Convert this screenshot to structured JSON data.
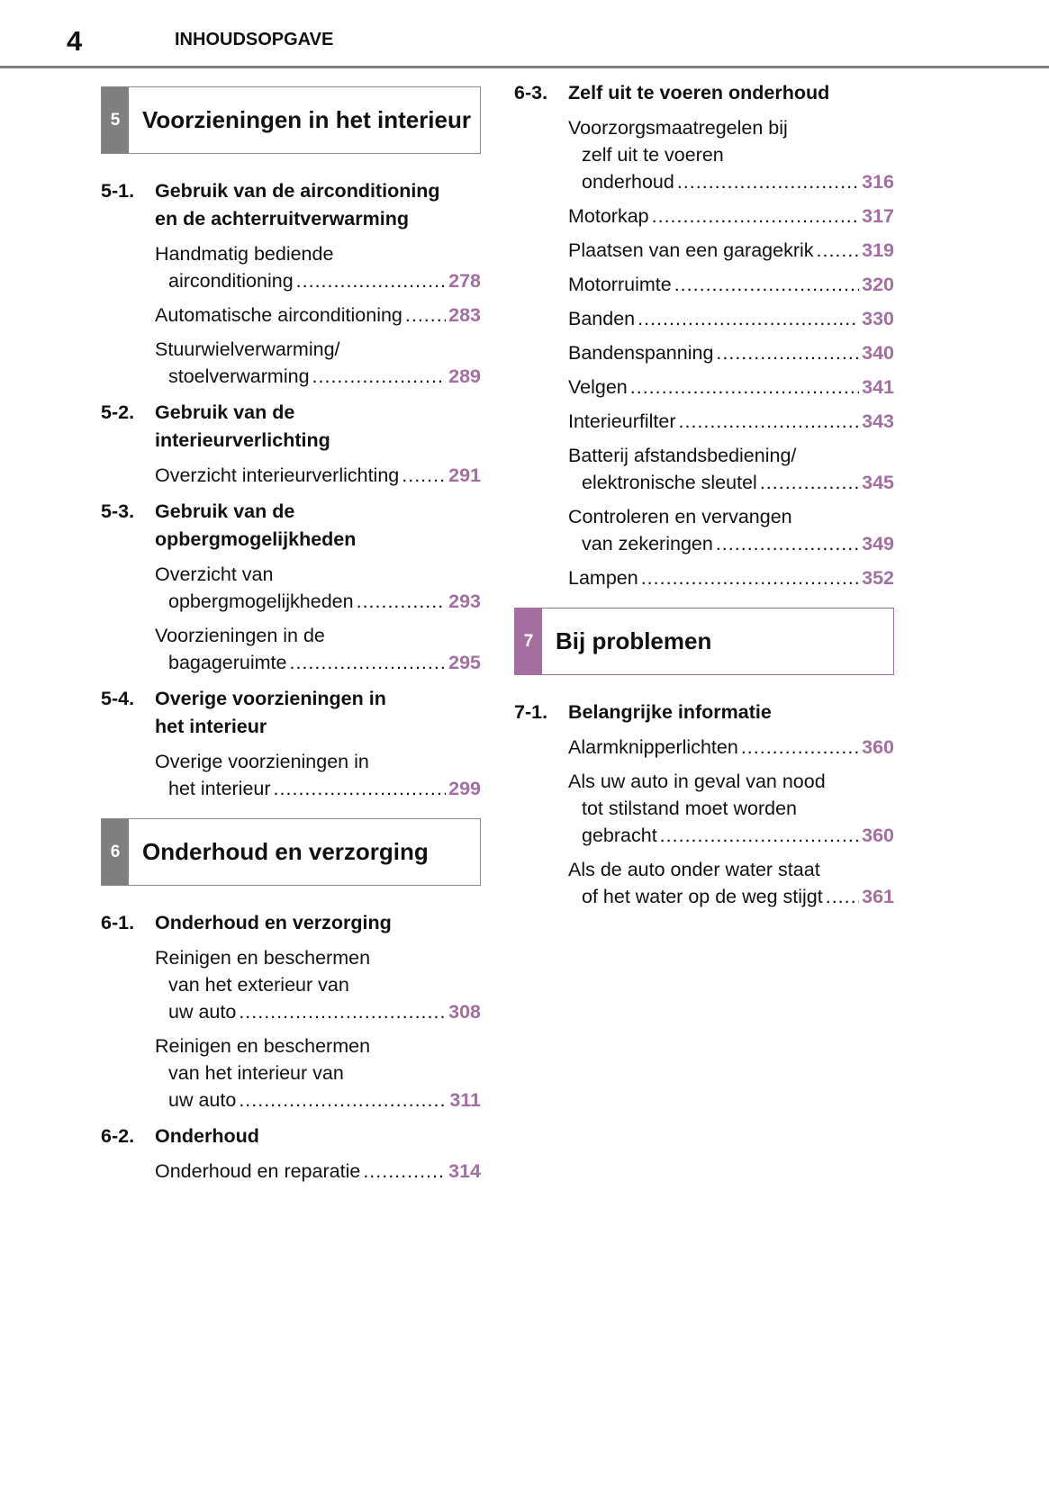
{
  "header": {
    "page_number": "4",
    "title": "INHOUDSOPGAVE"
  },
  "colors": {
    "accent": "#a46fa0",
    "section_tab_gray": "#7f7f7f"
  },
  "columns": [
    [
      {
        "type": "section",
        "num": "5",
        "title": "Voorzieningen in het interieur",
        "color": "gray"
      },
      {
        "type": "heading",
        "num": "5-1.",
        "lines": [
          "Gebruik van de airconditioning",
          "en de achterruitverwarming"
        ]
      },
      {
        "type": "entry",
        "lines": [
          "Handmatig bediende",
          "airconditioning"
        ],
        "page": "278"
      },
      {
        "type": "entry",
        "lines": [
          "Automatische airconditioning"
        ],
        "page": "283"
      },
      {
        "type": "entry",
        "lines": [
          "Stuurwielverwarming/",
          "stoelverwarming"
        ],
        "page": "289"
      },
      {
        "type": "heading",
        "num": "5-2.",
        "lines": [
          "Gebruik van de",
          "interieurverlichting"
        ]
      },
      {
        "type": "entry",
        "lines": [
          "Overzicht interieurverlichting"
        ],
        "page": "291"
      },
      {
        "type": "heading",
        "num": "5-3.",
        "lines": [
          "Gebruik van de",
          "opbergmogelijkheden"
        ]
      },
      {
        "type": "entry",
        "lines": [
          "Overzicht van",
          "opbergmogelijkheden"
        ],
        "page": "293"
      },
      {
        "type": "entry",
        "lines": [
          "Voorzieningen in de",
          "bagageruimte"
        ],
        "page": "295"
      },
      {
        "type": "heading",
        "num": "5-4.",
        "lines": [
          "Overige voorzieningen in",
          "het interieur"
        ]
      },
      {
        "type": "entry",
        "lines": [
          "Overige voorzieningen in",
          "het interieur"
        ],
        "page": "299"
      },
      {
        "type": "section",
        "num": "6",
        "title": "Onderhoud en verzorging",
        "color": "gray"
      },
      {
        "type": "heading",
        "num": "6-1.",
        "lines": [
          "Onderhoud en verzorging"
        ]
      },
      {
        "type": "entry",
        "lines": [
          "Reinigen en beschermen",
          "van het exterieur van",
          "uw auto"
        ],
        "page": "308"
      },
      {
        "type": "entry",
        "lines": [
          "Reinigen en beschermen",
          "van het interieur van",
          "uw auto"
        ],
        "page": "311"
      },
      {
        "type": "heading",
        "num": "6-2.",
        "lines": [
          "Onderhoud"
        ]
      },
      {
        "type": "entry",
        "lines": [
          "Onderhoud en reparatie"
        ],
        "page": "314"
      }
    ],
    [
      {
        "type": "heading",
        "num": "6-3.",
        "lines": [
          "Zelf uit te voeren onderhoud"
        ]
      },
      {
        "type": "entry",
        "lines": [
          "Voorzorgsmaatregelen bij",
          "zelf uit te voeren",
          "onderhoud"
        ],
        "page": "316"
      },
      {
        "type": "entry",
        "lines": [
          "Motorkap"
        ],
        "page": "317"
      },
      {
        "type": "entry",
        "lines": [
          "Plaatsen van een garagekrik"
        ],
        "page": "319"
      },
      {
        "type": "entry",
        "lines": [
          "Motorruimte"
        ],
        "page": "320"
      },
      {
        "type": "entry",
        "lines": [
          "Banden"
        ],
        "page": "330"
      },
      {
        "type": "entry",
        "lines": [
          "Bandenspanning"
        ],
        "page": "340"
      },
      {
        "type": "entry",
        "lines": [
          "Velgen"
        ],
        "page": "341"
      },
      {
        "type": "entry",
        "lines": [
          "Interieurfilter"
        ],
        "page": "343"
      },
      {
        "type": "entry",
        "lines": [
          "Batterij afstandsbediening/",
          "elektronische sleutel"
        ],
        "page": "345"
      },
      {
        "type": "entry",
        "lines": [
          "Controleren en vervangen",
          "van zekeringen"
        ],
        "page": "349"
      },
      {
        "type": "entry",
        "lines": [
          "Lampen"
        ],
        "page": "352"
      },
      {
        "type": "section",
        "num": "7",
        "title": "Bij problemen",
        "color": "purple"
      },
      {
        "type": "heading",
        "num": "7-1.",
        "lines": [
          "Belangrijke informatie"
        ]
      },
      {
        "type": "entry",
        "lines": [
          "Alarmknipperlichten"
        ],
        "page": "360"
      },
      {
        "type": "entry",
        "lines": [
          "Als uw auto in geval van nood",
          "tot stilstand moet worden",
          "gebracht"
        ],
        "page": "360"
      },
      {
        "type": "entry",
        "lines": [
          "Als de auto onder water staat",
          "of het water op de weg stijgt"
        ],
        "page": "361"
      }
    ]
  ]
}
